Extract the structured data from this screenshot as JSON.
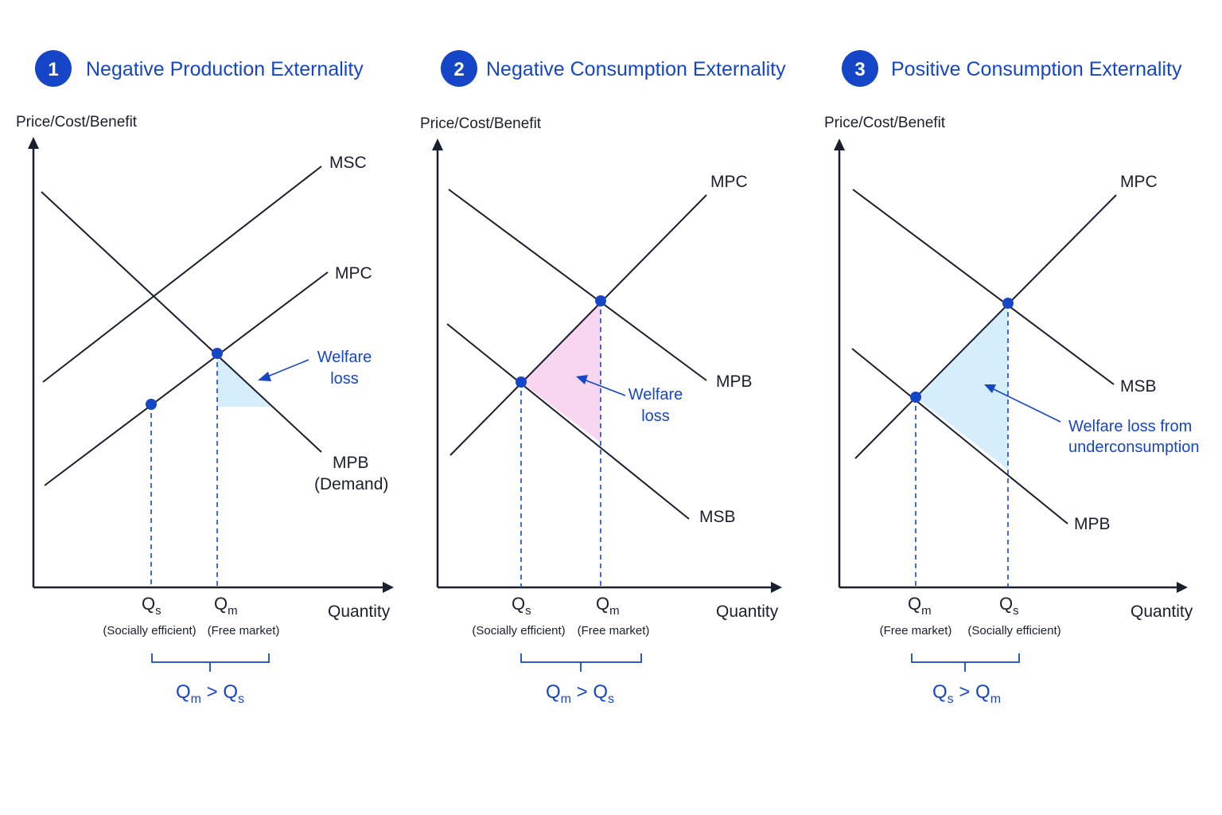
{
  "colors": {
    "accent": "#1646c8",
    "ink": "#1a1f2e",
    "welfare_blue": "#d6eefb",
    "welfare_pink": "#f8d6f0"
  },
  "panels": [
    {
      "number": "1",
      "title": "Negative Production Externality",
      "y_axis_label": "Price/Cost/Benefit",
      "x_axis_label": "Quantity",
      "curves": [
        "MSC",
        "MPC",
        "MPB",
        "(Demand)"
      ],
      "welfare_label": [
        "Welfare",
        "loss"
      ],
      "q_left": {
        "main": "Q",
        "sub": "s",
        "note": "(Socially efficient)"
      },
      "q_right": {
        "main": "Q",
        "sub": "m",
        "note": "(Free market)"
      },
      "comparison": {
        "a": "Q",
        "a_sub": "m",
        "op": " > ",
        "b": "Q",
        "b_sub": "s"
      }
    },
    {
      "number": "2",
      "title": "Negative Consumption Externality",
      "y_axis_label": "Price/Cost/Benefit",
      "x_axis_label": "Quantity",
      "curves": [
        "MPC",
        "MPB",
        "MSB"
      ],
      "welfare_label": [
        "Welfare",
        "loss"
      ],
      "q_left": {
        "main": "Q",
        "sub": "s",
        "note": "(Socially efficient)"
      },
      "q_right": {
        "main": "Q",
        "sub": "m",
        "note": "(Free market)"
      },
      "comparison": {
        "a": "Q",
        "a_sub": "m",
        "op": " > ",
        "b": "Q",
        "b_sub": "s"
      }
    },
    {
      "number": "3",
      "title": "Positive Consumption Externality",
      "y_axis_label": "Price/Cost/Benefit",
      "x_axis_label": "Quantity",
      "curves": [
        "MPC",
        "MSB",
        "MPB"
      ],
      "welfare_label": [
        "Welfare loss from",
        "underconsumption"
      ],
      "q_left": {
        "main": "Q",
        "sub": "m",
        "note": "(Free market)"
      },
      "q_right": {
        "main": "Q",
        "sub": "s",
        "note": "(Socially efficient)"
      },
      "comparison": {
        "a": "Q",
        "a_sub": "s",
        "op": " > ",
        "b": "Q",
        "b_sub": "m"
      }
    }
  ]
}
